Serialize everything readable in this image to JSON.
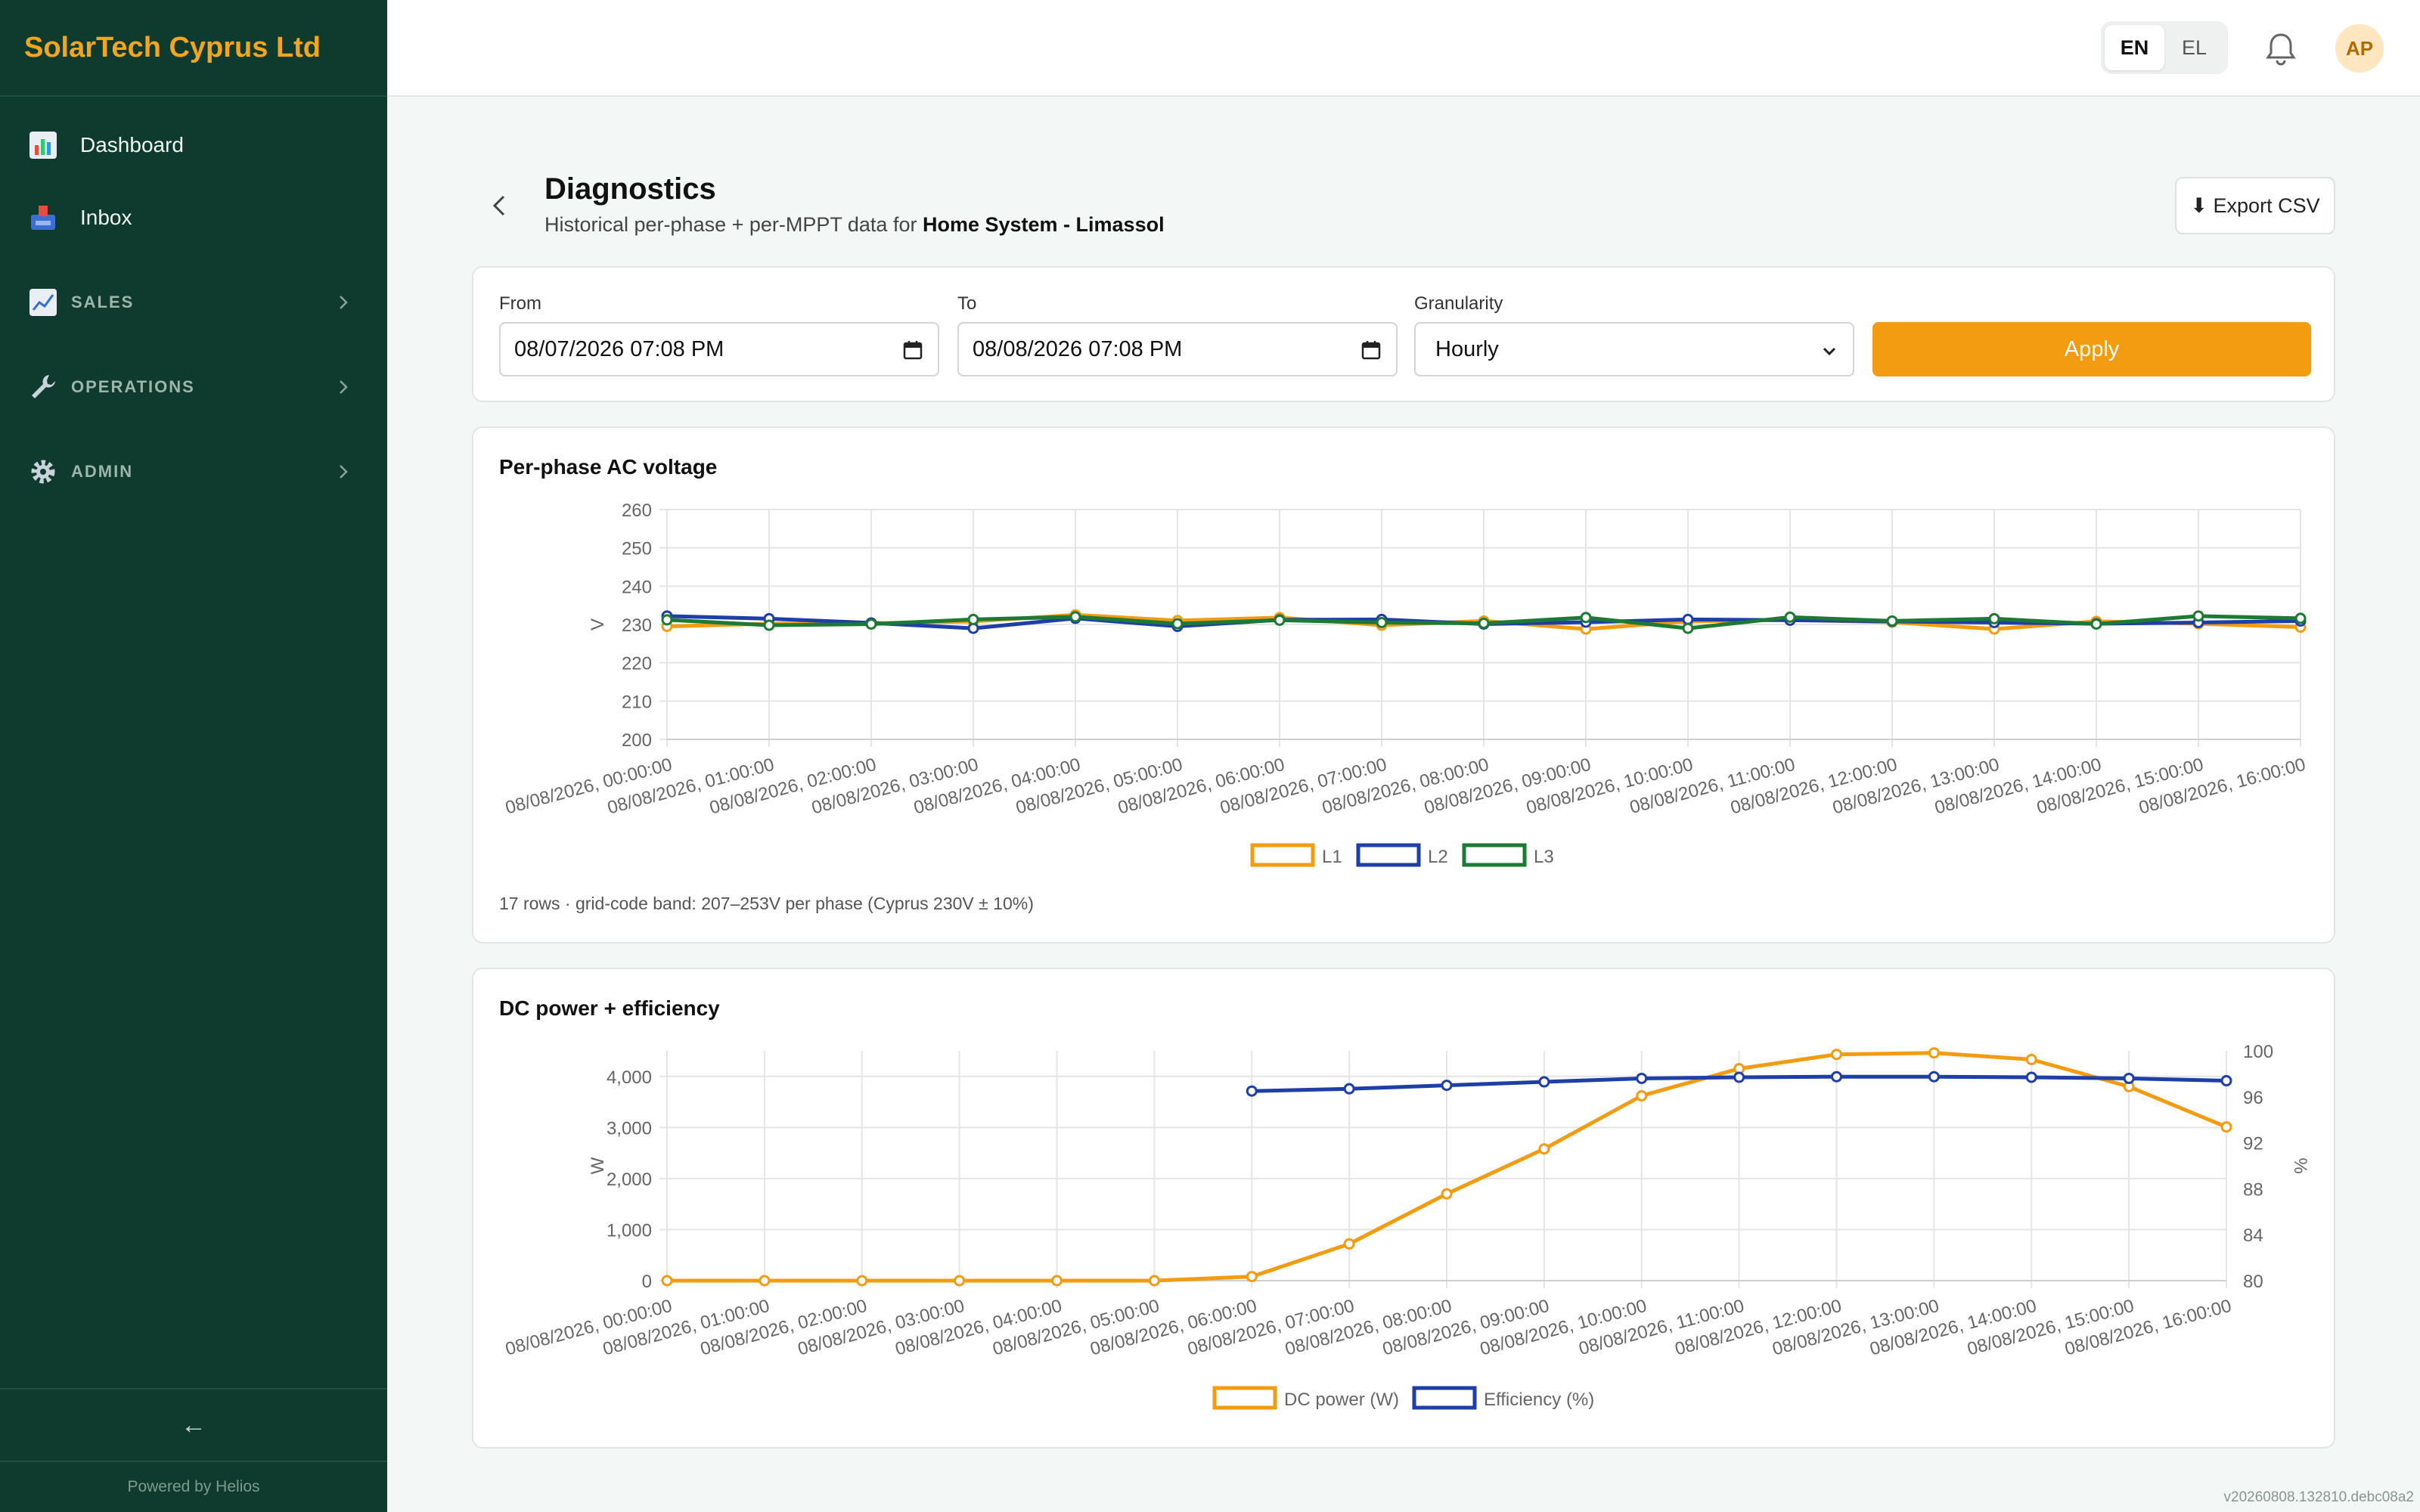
{
  "sidebar": {
    "brand": "SolarTech Cyprus Ltd",
    "items": [
      {
        "label": "Dashboard",
        "icon": "bar-chart-icon"
      },
      {
        "label": "Inbox",
        "icon": "inbox-icon"
      }
    ],
    "sections": [
      {
        "label": "SALES",
        "icon": "trend-chart-icon"
      },
      {
        "label": "OPERATIONS",
        "icon": "wrench-icon"
      },
      {
        "label": "ADMIN",
        "icon": "gear-icon"
      }
    ],
    "collapse": "←",
    "powered": "Powered by Helios"
  },
  "topbar": {
    "lang_en": "EN",
    "lang_el": "EL",
    "avatar": "AP"
  },
  "header": {
    "title": "Diagnostics",
    "subtitle_prefix": "Historical per-phase + per-MPPT data for ",
    "system": "Home System - Limassol",
    "export": "⬇ Export CSV"
  },
  "filters": {
    "from_label": "From",
    "from_value": "08/07/2026  07:08  PM",
    "to_label": "To",
    "to_value": "08/08/2026  07:08  PM",
    "gran_label": "Granularity",
    "gran_value": "Hourly",
    "apply": "Apply"
  },
  "voltage_card": {
    "title": "Per-phase AC voltage",
    "note": "17 rows · grid-code band: 207–253V per phase (Cyprus 230V ± 10%)"
  },
  "power_card": {
    "title": "DC power + efficiency"
  },
  "version": "v20260808.132810.debc08a2",
  "chart_data": [
    {
      "type": "line",
      "title": "Per-phase AC voltage",
      "ylabel": "V",
      "ylim": [
        200,
        260
      ],
      "yticks": [
        "200",
        "210",
        "220",
        "230",
        "240",
        "250",
        "260"
      ],
      "x": [
        "08/08/2026, 00:00:00",
        "08/08/2026, 01:00:00",
        "08/08/2026, 02:00:00",
        "08/08/2026, 03:00:00",
        "08/08/2026, 04:00:00",
        "08/08/2026, 05:00:00",
        "08/08/2026, 06:00:00",
        "08/08/2026, 07:00:00",
        "08/08/2026, 08:00:00",
        "08/08/2026, 09:00:00",
        "08/08/2026, 10:00:00",
        "08/08/2026, 11:00:00",
        "08/08/2026, 12:00:00",
        "08/08/2026, 13:00:00",
        "08/08/2026, 14:00:00",
        "08/08/2026, 15:00:00",
        "08/08/2026, 16:00:00"
      ],
      "series": [
        {
          "name": "L1",
          "color": "#f39c12",
          "values": [
            229.5,
            230.2,
            230.3,
            230.8,
            232.5,
            231.0,
            231.8,
            229.8,
            230.9,
            228.8,
            230.8,
            231.2,
            230.6,
            228.8,
            230.8,
            230.2,
            229.3
          ]
        },
        {
          "name": "L2",
          "color": "#1f3fa8",
          "values": [
            232.2,
            231.5,
            230.4,
            229.0,
            231.6,
            229.5,
            231.2,
            231.3,
            230.1,
            230.6,
            231.3,
            231.1,
            230.8,
            230.5,
            230.2,
            230.5,
            230.9
          ]
        },
        {
          "name": "L3",
          "color": "#1d7a35",
          "values": [
            231.2,
            229.8,
            230.1,
            231.3,
            232.0,
            230.2,
            231.1,
            230.5,
            230.3,
            231.8,
            229.0,
            231.9,
            230.9,
            231.5,
            230.1,
            232.2,
            231.6
          ]
        }
      ],
      "legend": "bottom",
      "grid": true
    },
    {
      "type": "line",
      "title": "DC power + efficiency",
      "ylabel": "W",
      "y2label": "%",
      "ylim": [
        0,
        4500
      ],
      "yticks": [
        "0",
        "1,000",
        "2,000",
        "3,000",
        "4,000"
      ],
      "y2lim": [
        80,
        100
      ],
      "y2ticks": [
        "80",
        "84",
        "88",
        "92",
        "96",
        "100"
      ],
      "x": [
        "08/08/2026, 00:00:00",
        "08/08/2026, 01:00:00",
        "08/08/2026, 02:00:00",
        "08/08/2026, 03:00:00",
        "08/08/2026, 04:00:00",
        "08/08/2026, 05:00:00",
        "08/08/2026, 06:00:00",
        "08/08/2026, 07:00:00",
        "08/08/2026, 08:00:00",
        "08/08/2026, 09:00:00",
        "08/08/2026, 10:00:00",
        "08/08/2026, 11:00:00",
        "08/08/2026, 12:00:00",
        "08/08/2026, 13:00:00",
        "08/08/2026, 14:00:00",
        "08/08/2026, 15:00:00",
        "08/08/2026, 16:00:00"
      ],
      "series": [
        {
          "name": "DC power (W)",
          "color": "#f39c12",
          "axis": "left",
          "values": [
            0,
            0,
            0,
            0,
            0,
            0,
            80,
            720,
            1700,
            2580,
            3620,
            4150,
            4430,
            4460,
            4330,
            3800,
            3010
          ]
        },
        {
          "name": "Efficiency (%)",
          "color": "#1f3fa8",
          "axis": "right",
          "values": [
            null,
            null,
            null,
            null,
            null,
            null,
            96.5,
            96.7,
            97.0,
            97.3,
            97.6,
            97.7,
            97.75,
            97.75,
            97.7,
            97.6,
            97.4
          ]
        }
      ],
      "legend": "bottom",
      "grid": true
    }
  ]
}
